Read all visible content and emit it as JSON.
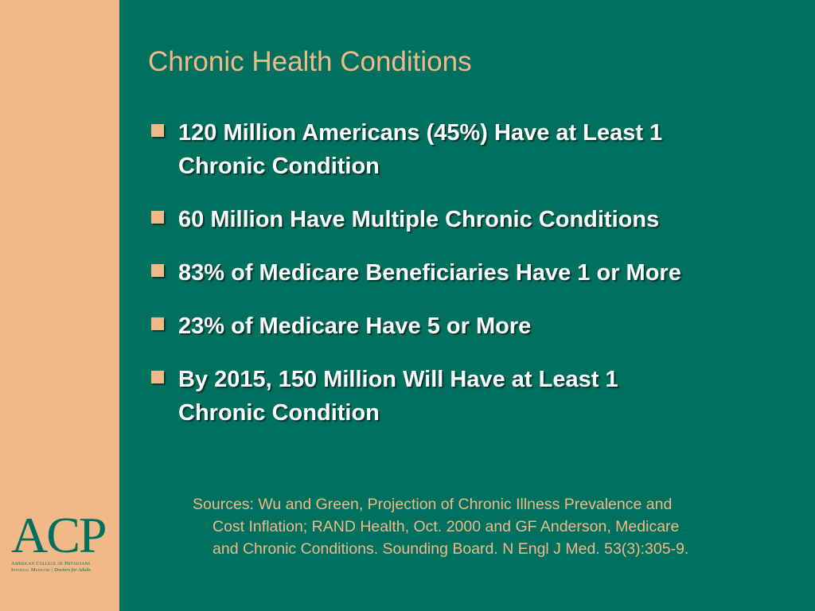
{
  "slide": {
    "title": "Chronic Health Conditions",
    "bullets": [
      {
        "line1": "120 Million Americans (45%) Have at Least 1",
        "line2": "Chronic Condition"
      },
      {
        "line1": "60 Million Have Multiple Chronic Conditions"
      },
      {
        "line1": "83% of Medicare Beneficiaries Have 1 or More"
      },
      {
        "line1": "23% of Medicare Have 5 or More"
      },
      {
        "line1": "By 2015, 150 Million  Will Have at Least 1",
        "line2": "Chronic Condition"
      }
    ],
    "sources": [
      "Sources: Wu and Green, Projection of Chronic Illness Prevalence and",
      "Cost Inflation; RAND Health, Oct. 2000 and GF Anderson, Medicare",
      "and Chronic Conditions. Sounding Board. N Engl J Med. 53(3):305-9."
    ]
  },
  "logo": {
    "mark": "ACP",
    "line1": "American College of Physicians",
    "line2_institution": "Internal Medicine",
    "line2_separator": "|",
    "line2_tagline": "Doctors for Adults"
  },
  "colors": {
    "background": "#00705f",
    "sidebar": "#f2b988",
    "accent": "#f2b988",
    "text": "#ffffff"
  }
}
